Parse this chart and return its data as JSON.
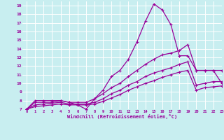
{
  "background_color": "#c8eef0",
  "grid_color": "#ffffff",
  "line_color": "#990099",
  "xlabel": "Windchill (Refroidissement éolien,°C)",
  "xlim": [
    -0.5,
    23
  ],
  "ylim": [
    7,
    19.5
  ],
  "yticks": [
    7,
    8,
    9,
    10,
    11,
    12,
    13,
    14,
    15,
    16,
    17,
    18,
    19
  ],
  "xticks": [
    0,
    1,
    2,
    3,
    4,
    5,
    6,
    7,
    8,
    9,
    10,
    11,
    12,
    13,
    14,
    15,
    16,
    17,
    18,
    19,
    20,
    21,
    22,
    23
  ],
  "line1": [
    7.0,
    8.0,
    8.0,
    8.0,
    8.0,
    7.8,
    7.5,
    7.0,
    8.2,
    9.2,
    10.8,
    11.5,
    12.8,
    14.8,
    17.2,
    19.2,
    18.5,
    16.8,
    13.2,
    13.2,
    11.5,
    11.5,
    11.5,
    10.0
  ],
  "line2": [
    7.0,
    7.8,
    7.8,
    7.8,
    8.0,
    7.8,
    7.8,
    7.8,
    8.2,
    8.8,
    9.5,
    10.0,
    10.8,
    11.5,
    12.2,
    12.8,
    13.3,
    13.5,
    13.8,
    14.5,
    11.5,
    11.5,
    11.5,
    11.5
  ],
  "line3": [
    7.0,
    7.5,
    7.6,
    7.7,
    7.8,
    7.6,
    7.6,
    7.6,
    7.8,
    8.2,
    8.8,
    9.2,
    9.8,
    10.2,
    10.8,
    11.2,
    11.5,
    11.8,
    12.2,
    12.5,
    9.8,
    10.0,
    10.2,
    10.2
  ],
  "line4": [
    7.0,
    7.3,
    7.4,
    7.5,
    7.6,
    7.5,
    7.5,
    7.5,
    7.6,
    7.9,
    8.3,
    8.7,
    9.2,
    9.6,
    10.0,
    10.3,
    10.7,
    11.0,
    11.3,
    11.5,
    9.2,
    9.5,
    9.6,
    9.7
  ]
}
